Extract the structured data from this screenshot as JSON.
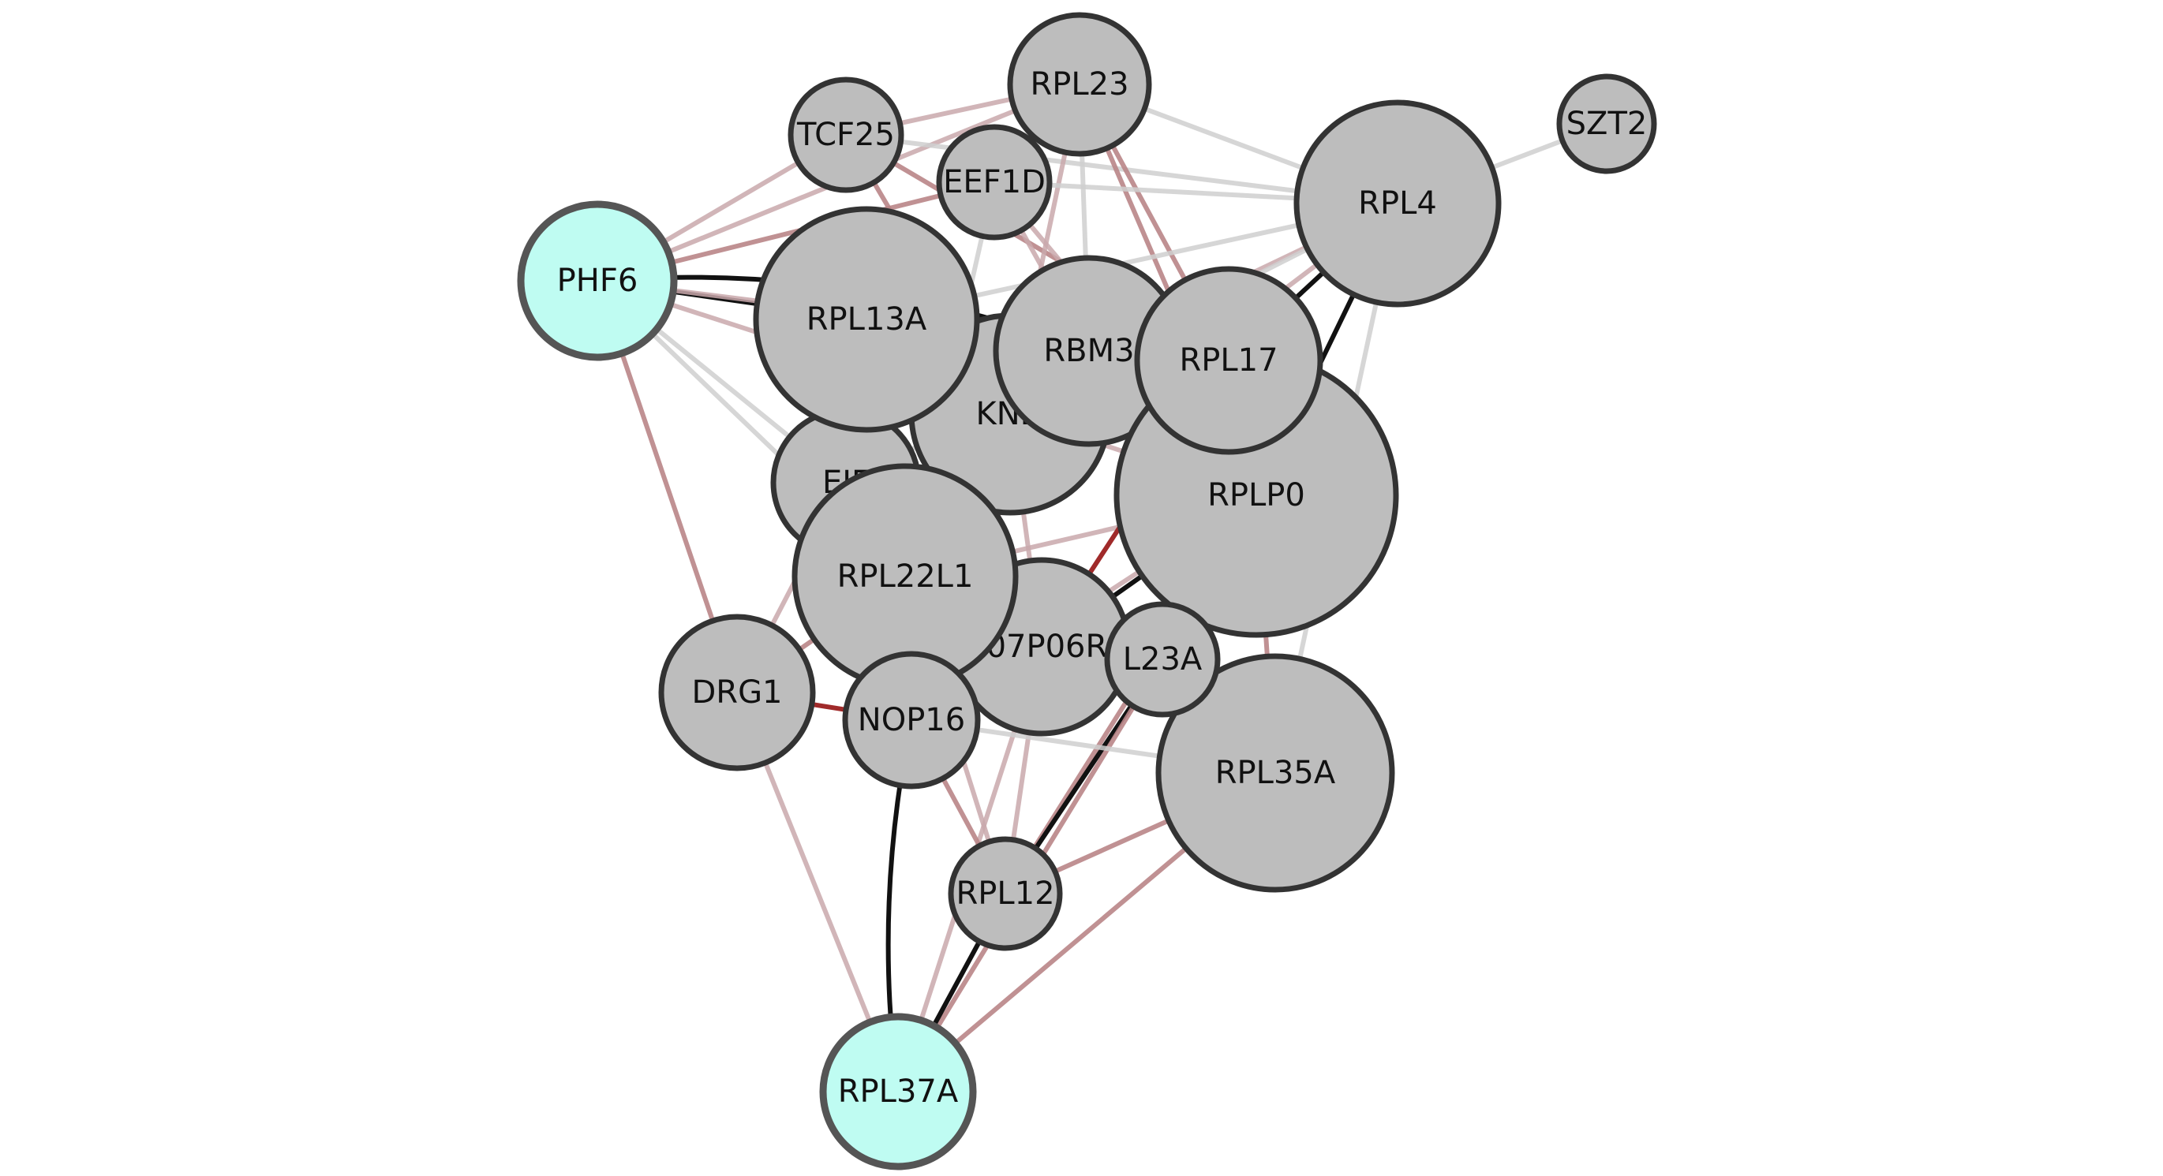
{
  "colors": {
    "node_default": "#bdbdbd",
    "node_highlight": "#bffcf2",
    "node_stroke": "#333333",
    "highlight_stroke": "#555555",
    "edge_light": "#cfcfcf",
    "edge_pink": "#c9a8ab",
    "edge_rose": "#b98587",
    "edge_red": "#a02a2a",
    "edge_dark": "#111111"
  },
  "nodes": [
    {
      "id": "eif",
      "label": "EIF",
      "highlight": false
    },
    {
      "id": "kndc",
      "label": "KND",
      "highlight": false
    },
    {
      "id": "rpl13a",
      "label": "RPL13A",
      "highlight": false
    },
    {
      "id": "rbm3",
      "label": "RBM3",
      "highlight": false
    },
    {
      "id": "rplp0",
      "label": "RPLP0",
      "highlight": false
    },
    {
      "id": "rpl17",
      "label": "RPL17",
      "highlight": false
    },
    {
      "id": "rpl4",
      "label": "RPL4",
      "highlight": false
    },
    {
      "id": "rpl23",
      "label": "RPL23",
      "highlight": false
    },
    {
      "id": "tcf25",
      "label": "TCF25",
      "highlight": false
    },
    {
      "id": "eef1d",
      "label": "EEF1D",
      "highlight": false
    },
    {
      "id": "szt2",
      "label": "SZT2",
      "highlight": false
    },
    {
      "id": "phf6",
      "label": "PHF6",
      "highlight": true
    },
    {
      "id": "rpl35a",
      "label": "RPL35A",
      "highlight": false
    },
    {
      "id": "rik",
      "label": "0007P06RIK",
      "highlight": false
    },
    {
      "id": "rpl23a",
      "label": "L23A",
      "highlight": false
    },
    {
      "id": "rpl22l1",
      "label": "RPL22L1",
      "highlight": false
    },
    {
      "id": "drg1",
      "label": "DRG1",
      "highlight": false
    },
    {
      "id": "nop16",
      "label": "NOP16",
      "highlight": false
    },
    {
      "id": "rpl12",
      "label": "RPL12",
      "highlight": false
    },
    {
      "id": "rpl37a",
      "label": "RPL37A",
      "highlight": true
    }
  ],
  "edges": [
    {
      "source": "phf6",
      "target": "rpl23",
      "style": "pink"
    },
    {
      "source": "phf6",
      "target": "tcf25",
      "style": "pink"
    },
    {
      "source": "phf6",
      "target": "eef1d",
      "style": "rose"
    },
    {
      "source": "phf6",
      "target": "rbm3",
      "style": "dark"
    },
    {
      "source": "phf6",
      "target": "rpl13a",
      "style": "dark"
    },
    {
      "source": "phf6",
      "target": "kndc",
      "style": "pink"
    },
    {
      "source": "phf6",
      "target": "eif",
      "style": "light"
    },
    {
      "source": "phf6",
      "target": "rpl22l1",
      "style": "light"
    },
    {
      "source": "phf6",
      "target": "drg1",
      "style": "rose"
    },
    {
      "source": "phf6",
      "target": "rpl17",
      "style": "pink"
    },
    {
      "source": "tcf25",
      "target": "rpl23",
      "style": "pink"
    },
    {
      "source": "tcf25",
      "target": "rpl4",
      "style": "light"
    },
    {
      "source": "tcf25",
      "target": "rpl17",
      "style": "rose"
    },
    {
      "source": "tcf25",
      "target": "kndc",
      "style": "rose"
    },
    {
      "source": "rpl23",
      "target": "rpl4",
      "style": "light"
    },
    {
      "source": "rpl23",
      "target": "rbm3",
      "style": "light"
    },
    {
      "source": "rpl23",
      "target": "rpl17",
      "style": "rose"
    },
    {
      "source": "rpl23",
      "target": "rplp0",
      "style": "rose"
    },
    {
      "source": "rpl23",
      "target": "kndc",
      "style": "pink"
    },
    {
      "source": "eef1d",
      "target": "rpl4",
      "style": "light"
    },
    {
      "source": "eef1d",
      "target": "rplp0",
      "style": "pink"
    },
    {
      "source": "eef1d",
      "target": "rpl22l1",
      "style": "light"
    },
    {
      "source": "eef1d",
      "target": "rbm3",
      "style": "pink"
    },
    {
      "source": "szt2",
      "target": "rpl4",
      "style": "light"
    },
    {
      "source": "rpl4",
      "target": "rpl13a",
      "style": "light"
    },
    {
      "source": "rpl4",
      "target": "rbm3",
      "style": "pink"
    },
    {
      "source": "rpl4",
      "target": "rpl17",
      "style": "dark"
    },
    {
      "source": "rpl4",
      "target": "rplp0",
      "style": "dark"
    },
    {
      "source": "rpl4",
      "target": "rpl35a",
      "style": "light"
    },
    {
      "source": "rpl4",
      "target": "rpl22l1",
      "style": "pink"
    },
    {
      "source": "rpl4",
      "target": "eif",
      "style": "light"
    },
    {
      "source": "rpl13a",
      "target": "kndc",
      "style": "dark"
    },
    {
      "source": "rpl13a",
      "target": "rbm3",
      "style": "dark"
    },
    {
      "source": "rbm3",
      "target": "kndc",
      "style": "dark"
    },
    {
      "source": "rbm3",
      "target": "rpl17",
      "style": "pink"
    },
    {
      "source": "rbm3",
      "target": "rpl22l1",
      "style": "pink"
    },
    {
      "source": "kndc",
      "target": "rpl22l1",
      "style": "dark"
    },
    {
      "source": "kndc",
      "target": "rik",
      "style": "pink"
    },
    {
      "source": "kndc",
      "target": "rplp0",
      "style": "pink"
    },
    {
      "source": "rplp0",
      "target": "rpl22l1",
      "style": "pink"
    },
    {
      "source": "rplp0",
      "target": "rik",
      "style": "dark"
    },
    {
      "source": "rplp0",
      "target": "rpl35a",
      "style": "rose"
    },
    {
      "source": "rplp0",
      "target": "nop16",
      "style": "pink"
    },
    {
      "source": "rplp0",
      "target": "rpl12",
      "style": "rose"
    },
    {
      "source": "rpl17",
      "target": "rpl22l1",
      "style": "pink"
    },
    {
      "source": "rpl17",
      "target": "rik",
      "style": "red"
    },
    {
      "source": "eif",
      "target": "rpl22l1",
      "style": "light"
    },
    {
      "source": "eif",
      "target": "drg1",
      "style": "pink"
    },
    {
      "source": "rpl22l1",
      "target": "rik",
      "style": "rose"
    },
    {
      "source": "rpl22l1",
      "target": "drg1",
      "style": "rose"
    },
    {
      "source": "rpl22l1",
      "target": "rpl12",
      "style": "pink"
    },
    {
      "source": "rik",
      "target": "rpl23a",
      "style": "rose"
    },
    {
      "source": "rik",
      "target": "rpl12",
      "style": "pink"
    },
    {
      "source": "rik",
      "target": "rpl37a",
      "style": "pink"
    },
    {
      "source": "rpl23a",
      "target": "rpl12",
      "style": "dark"
    },
    {
      "source": "rpl23a",
      "target": "rpl37a",
      "style": "rose"
    },
    {
      "source": "drg1",
      "target": "nop16",
      "style": "red"
    },
    {
      "source": "drg1",
      "target": "rpl37a",
      "style": "pink"
    },
    {
      "source": "nop16",
      "target": "rpl37a",
      "style": "dark"
    },
    {
      "source": "nop16",
      "target": "rpl12",
      "style": "rose"
    },
    {
      "source": "nop16",
      "target": "rpl35a",
      "style": "light"
    },
    {
      "source": "rpl12",
      "target": "rpl37a",
      "style": "dark"
    },
    {
      "source": "rpl12",
      "target": "rpl35a",
      "style": "rose"
    },
    {
      "source": "rpl35a",
      "target": "rpl37a",
      "style": "rose"
    }
  ]
}
